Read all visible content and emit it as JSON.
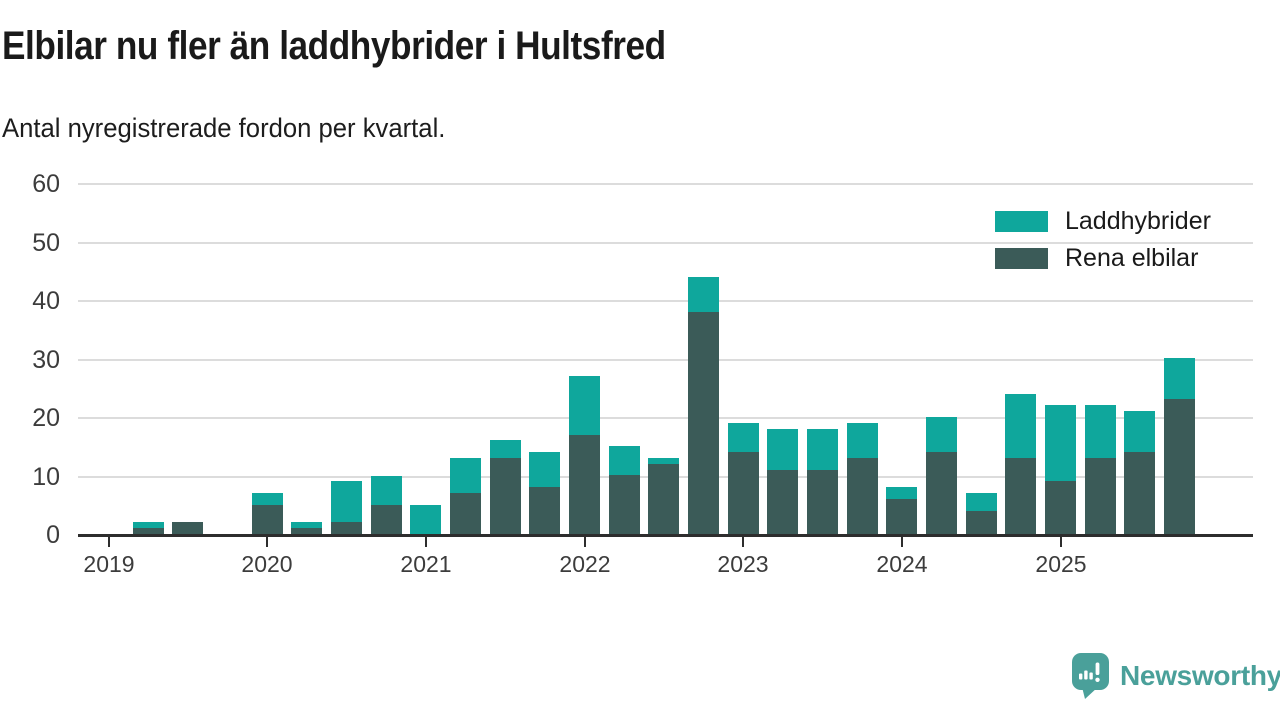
{
  "header": {
    "title": "Elbilar nu fler än laddhybrider i Hultsfred",
    "subtitle": "Antal nyregistrerade fordon per kvartal."
  },
  "legend": [
    {
      "label": "Laddhybrider",
      "color": "#0fa79c"
    },
    {
      "label": "Rena elbilar",
      "color": "#3b5b58"
    }
  ],
  "footer": {
    "brand": "Newsworthy",
    "brand_color": "#4aa09a",
    "logo_icon": "speech-bubble-bar-chart-icon"
  },
  "chart_data": {
    "type": "bar",
    "stacked": true,
    "title": "Elbilar nu fler än laddhybrider i Hultsfred",
    "subtitle": "Antal nyregistrerade fordon per kvartal.",
    "xlabel": "",
    "ylabel": "",
    "ylim": [
      0,
      60
    ],
    "yticks": [
      0,
      10,
      20,
      30,
      40,
      50,
      60
    ],
    "grid": true,
    "legend_position": "top-right",
    "categories": [
      "2019 Q1",
      "2019 Q2",
      "2019 Q3",
      "2019 Q4",
      "2020 Q1",
      "2020 Q2",
      "2020 Q3",
      "2020 Q4",
      "2021 Q1",
      "2021 Q2",
      "2021 Q3",
      "2021 Q4",
      "2022 Q1",
      "2022 Q2",
      "2022 Q3",
      "2022 Q4",
      "2023 Q1",
      "2023 Q2",
      "2023 Q3",
      "2023 Q4",
      "2024 Q1",
      "2024 Q2",
      "2024 Q3",
      "2024 Q4",
      "2025 Q1",
      "2025 Q2",
      "2025 Q3",
      "2025 Q4"
    ],
    "x_tick_labels": [
      "2019",
      "2020",
      "2021",
      "2022",
      "2023",
      "2024",
      "2025"
    ],
    "series": [
      {
        "name": "Rena elbilar",
        "color": "#3b5b58",
        "values": [
          0,
          1,
          2,
          0,
          5,
          1,
          2,
          5,
          0,
          7,
          13,
          8,
          17,
          10,
          12,
          38,
          14,
          11,
          11,
          13,
          6,
          14,
          4,
          13,
          9,
          13,
          14,
          23
        ]
      },
      {
        "name": "Laddhybrider",
        "color": "#0fa79c",
        "values": [
          0,
          1,
          0,
          0,
          2,
          1,
          7,
          5,
          5,
          6,
          3,
          6,
          10,
          5,
          1,
          6,
          5,
          7,
          7,
          6,
          2,
          6,
          3,
          11,
          13,
          9,
          7,
          7
        ]
      }
    ]
  }
}
